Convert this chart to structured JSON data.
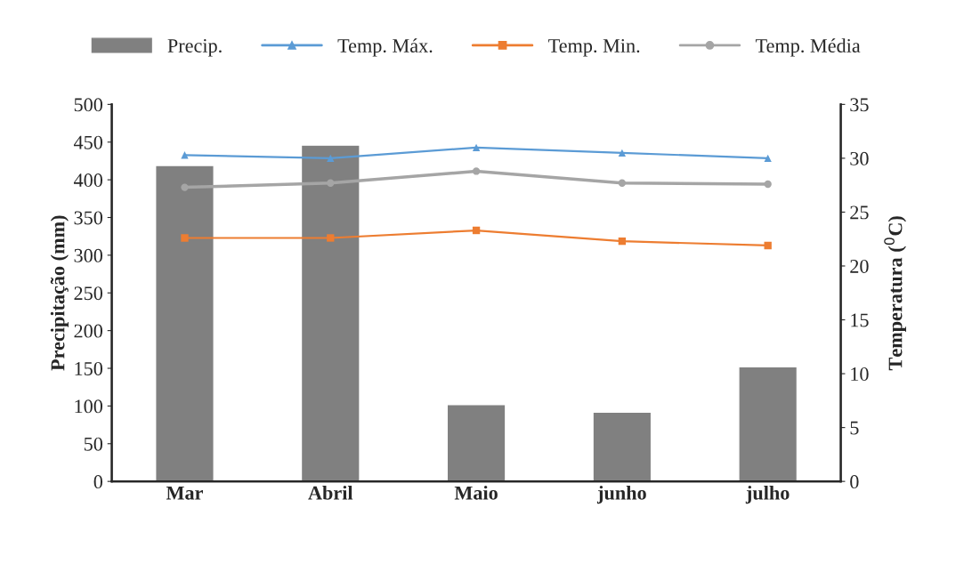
{
  "chart_data": {
    "type": "bar",
    "categories": [
      "Mar",
      "Abril",
      "Maio",
      "junho",
      "julho"
    ],
    "series": [
      {
        "name": "Precip.",
        "color": "#808080",
        "values": [
          419,
          446,
          102,
          92,
          152
        ]
      },
      {
        "name": "Temp. Máx.",
        "type": "line",
        "axis": "y2",
        "marker": "triangle",
        "color": "#5b9bd5",
        "values": [
          30.3,
          30.0,
          31.0,
          30.5,
          30.0
        ]
      },
      {
        "name": "Temp. Min.",
        "type": "line",
        "axis": "y2",
        "marker": "square",
        "color": "#ed7d31",
        "values": [
          22.6,
          22.6,
          23.3,
          22.3,
          21.9
        ]
      },
      {
        "name": "Temp. Média",
        "type": "line",
        "axis": "y2",
        "marker": "circle",
        "color": "#a5a5a5",
        "values": [
          27.3,
          27.7,
          28.8,
          27.7,
          27.6
        ]
      }
    ],
    "ylabel": "Precipitação (mm)",
    "y2label": "Temperatura ($^{0}$C)",
    "ylim": [
      0,
      500
    ],
    "yticks": [
      0,
      50,
      100,
      150,
      200,
      250,
      300,
      350,
      400,
      450,
      500
    ],
    "y2lim": [
      0,
      35
    ],
    "y2ticks": [
      0,
      5,
      10,
      15,
      20,
      25,
      30,
      35
    ],
    "grid": false,
    "legend": "top"
  }
}
